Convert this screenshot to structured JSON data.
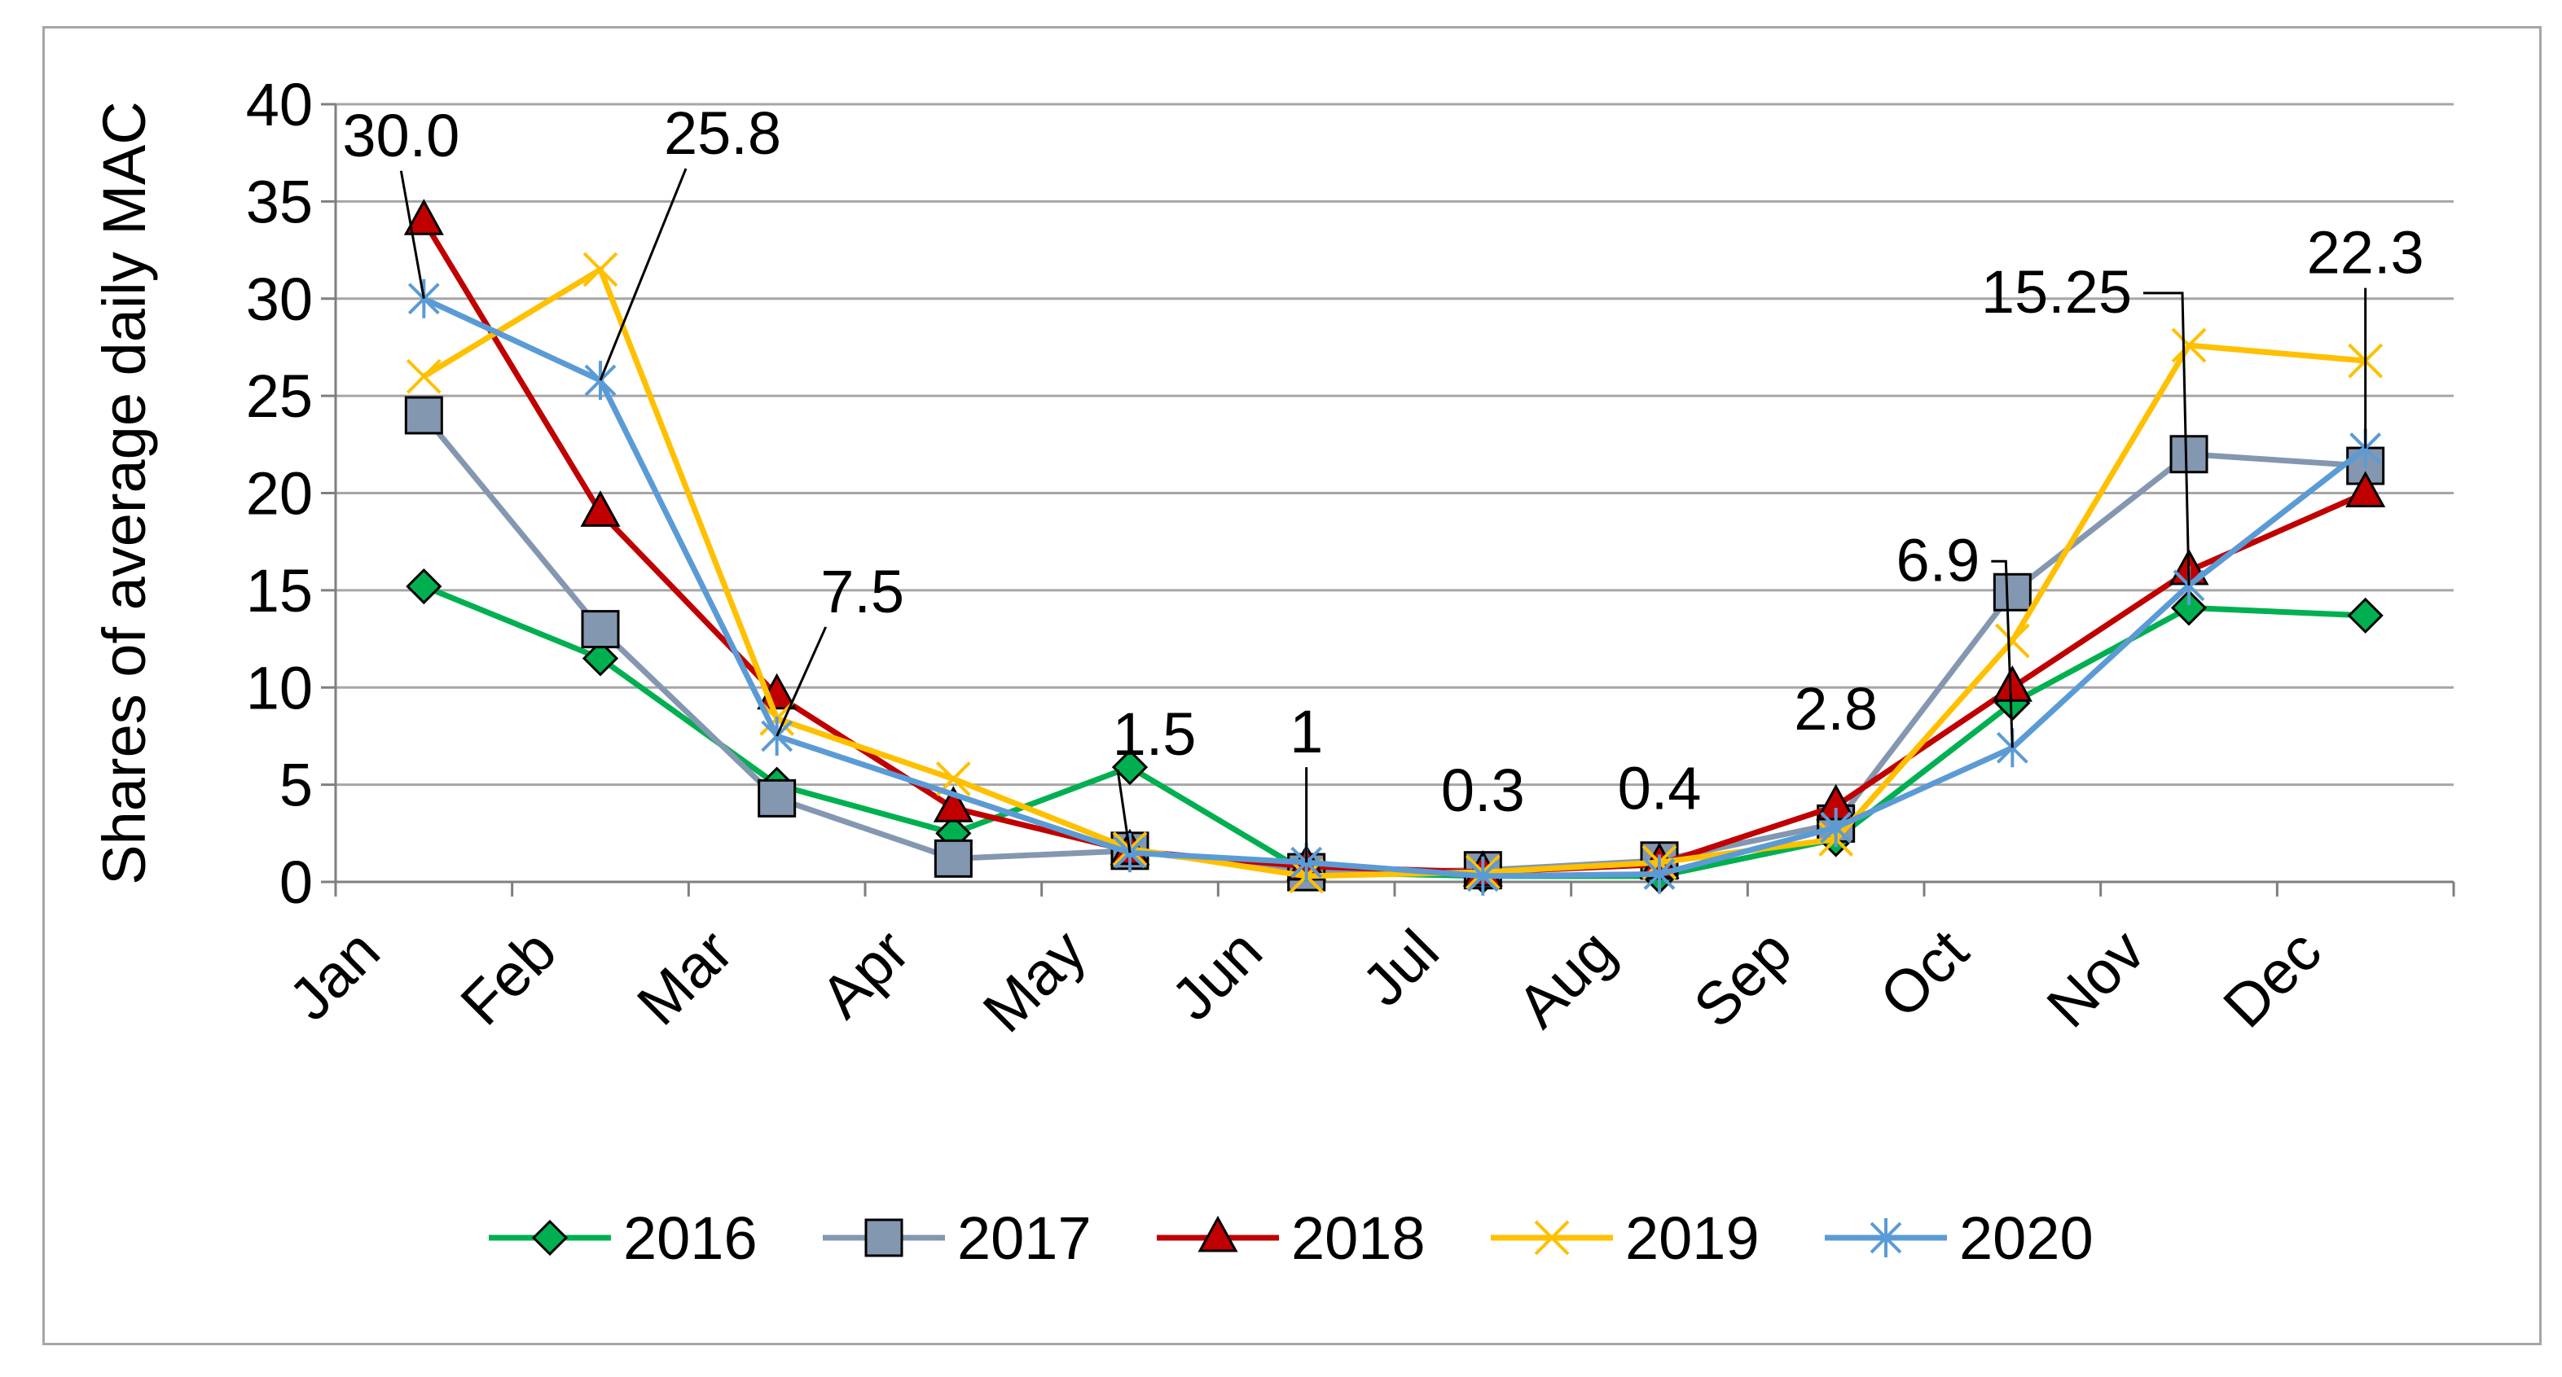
{
  "chart_data": {
    "type": "line",
    "title": "",
    "xlabel": "",
    "ylabel": "Shares of average daily MAC",
    "ylim": [
      0,
      40
    ],
    "yticks": [
      0,
      5,
      10,
      15,
      20,
      25,
      30,
      35,
      40
    ],
    "grid": true,
    "legend": "bottom",
    "categories": [
      "Jan",
      "Feb",
      "Mar",
      "Apr",
      "May",
      "Jun",
      "Jul",
      "Aug",
      "Sep",
      "Oct",
      "Nov",
      "Dec"
    ],
    "series": [
      {
        "name": "2016",
        "color": "#00b050",
        "marker": "diamond",
        "values": [
          15.2,
          11.5,
          5.0,
          2.5,
          5.9,
          0.5,
          0.3,
          0.3,
          2.2,
          9.2,
          14.1,
          13.7
        ]
      },
      {
        "name": "2017",
        "color": "#8497b0",
        "marker": "square",
        "values": [
          24.0,
          13.0,
          4.3,
          1.2,
          1.6,
          0.5,
          0.6,
          1.1,
          3.0,
          14.9,
          22.0,
          21.4
        ]
      },
      {
        "name": "2018",
        "color": "#c00000",
        "marker": "triangle",
        "values": [
          34.0,
          19.0,
          9.6,
          3.8,
          1.6,
          0.8,
          0.5,
          0.9,
          3.9,
          10.0,
          16.0,
          20.0
        ]
      },
      {
        "name": "2019",
        "color": "#ffc000",
        "marker": "x",
        "values": [
          26.0,
          31.5,
          8.4,
          5.3,
          1.7,
          0.3,
          0.5,
          1.0,
          2.2,
          12.4,
          27.6,
          26.8
        ]
      },
      {
        "name": "2020",
        "color": "#5b9bd5",
        "marker": "star",
        "values": [
          30.0,
          25.8,
          7.5,
          null,
          1.5,
          1.0,
          0.3,
          0.4,
          2.8,
          6.9,
          15.25,
          22.3
        ]
      }
    ],
    "annotations": [
      {
        "text": "30.0",
        "category": "Jan",
        "value": 30.0
      },
      {
        "text": "25.8",
        "category": "Feb",
        "value": 25.8
      },
      {
        "text": "7.5",
        "category": "Mar",
        "value": 7.5
      },
      {
        "text": "1.5",
        "category": "May",
        "value": 1.5
      },
      {
        "text": "1",
        "category": "Jun",
        "value": 1.0
      },
      {
        "text": "0.3",
        "category": "Jul",
        "value": 0.3
      },
      {
        "text": "0.4",
        "category": "Aug",
        "value": 0.4
      },
      {
        "text": "2.8",
        "category": "Sep",
        "value": 2.8
      },
      {
        "text": "6.9",
        "category": "Oct",
        "value": 6.9
      },
      {
        "text": "15.25",
        "category": "Nov",
        "value": 15.25
      },
      {
        "text": "22.3",
        "category": "Dec",
        "value": 22.3
      }
    ]
  }
}
